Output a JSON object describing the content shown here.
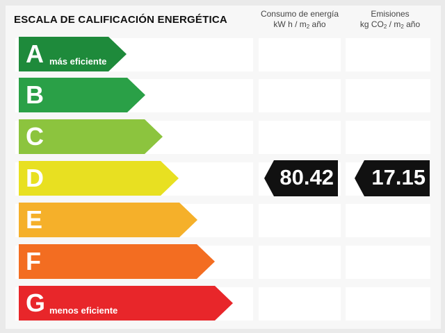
{
  "header": {
    "title": "ESCALA DE CALIFICACIÓN ENERGÉTICA",
    "consumo_line1": "Consumo de energía",
    "consumo_line2_a": "kW h / m",
    "consumo_sub": "2",
    "consumo_line2_b": " año",
    "emisiones_line1": "Emisiones",
    "emisiones_line2_a": "kg CO",
    "emisiones_sub": "2",
    "emisiones_line2_b": " / m",
    "emisiones_sub2": "2",
    "emisiones_line2_c": " año"
  },
  "ratings": [
    {
      "letter": "A",
      "label": "más eficiente",
      "color": "#1e8a3b"
    },
    {
      "letter": "B",
      "label": "",
      "color": "#2aa047"
    },
    {
      "letter": "C",
      "label": "",
      "color": "#8cc43e"
    },
    {
      "letter": "D",
      "label": "",
      "color": "#e8e021"
    },
    {
      "letter": "E",
      "label": "",
      "color": "#f5b02a"
    },
    {
      "letter": "F",
      "label": "",
      "color": "#f36d21"
    },
    {
      "letter": "G",
      "label": "menos eficiente",
      "color": "#e8262a"
    }
  ],
  "current": {
    "rating": "D",
    "consumo": "80.42",
    "emisiones": "17.15"
  }
}
